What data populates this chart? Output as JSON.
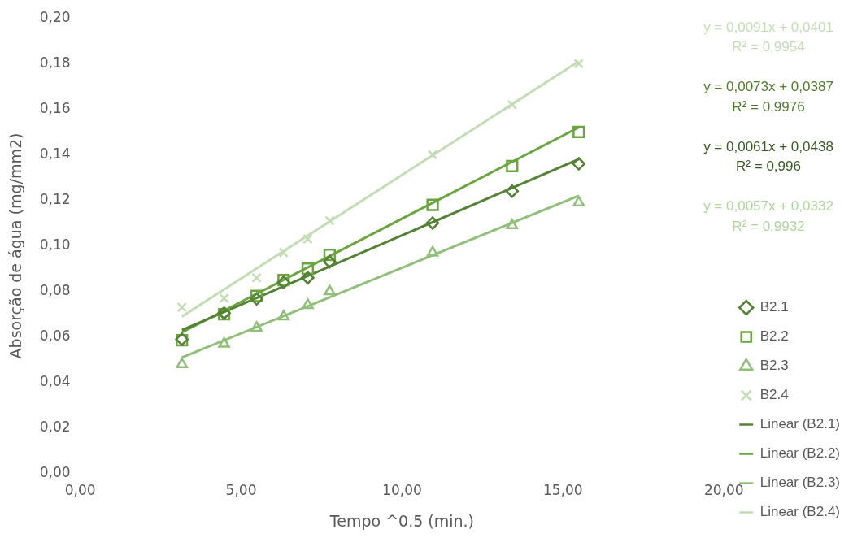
{
  "chart_data": {
    "type": "scatter",
    "xlabel": "Tempo ^0.5 (min.)",
    "ylabel": "Absorção de água (mg/mm2)",
    "xlim": [
      0,
      20
    ],
    "xticks": [
      {
        "value": 0,
        "label": "0,00"
      },
      {
        "value": 5,
        "label": "5,00"
      },
      {
        "value": 10,
        "label": "10,00"
      },
      {
        "value": 15,
        "label": "15,00"
      },
      {
        "value": 20,
        "label": "20,00"
      }
    ],
    "ylim": [
      0,
      0.2
    ],
    "yticks": [
      {
        "value": 0,
        "label": "0,00"
      },
      {
        "value": 0.02,
        "label": "0,02"
      },
      {
        "value": 0.04,
        "label": "0,04"
      },
      {
        "value": 0.06,
        "label": "0,06"
      },
      {
        "value": 0.08,
        "label": "0,08"
      },
      {
        "value": 0.1,
        "label": "0,10"
      },
      {
        "value": 0.12,
        "label": "0,12"
      },
      {
        "value": 0.14,
        "label": "0,14"
      },
      {
        "value": 0.16,
        "label": "0,16"
      },
      {
        "value": 0.18,
        "label": "0,18"
      },
      {
        "value": 0.2,
        "label": "0,20"
      }
    ],
    "grid": false,
    "legend": "right",
    "series": [
      {
        "name": "B2.1",
        "type": "scatter",
        "marker": "diamond",
        "color": "#548235",
        "x": [
          3.16,
          4.47,
          5.48,
          6.32,
          7.07,
          7.75,
          10.95,
          13.42,
          15.49
        ],
        "values": [
          0.059,
          0.0705,
          0.0767,
          0.084,
          0.086,
          0.093,
          0.11,
          0.124,
          0.136
        ]
      },
      {
        "name": "B2.2",
        "type": "scatter",
        "marker": "square",
        "color": "#6aa53f",
        "x": [
          3.16,
          4.47,
          5.48,
          6.32,
          7.07,
          7.75,
          10.95,
          13.42,
          15.49
        ],
        "values": [
          0.0586,
          0.07,
          0.078,
          0.085,
          0.09,
          0.096,
          0.118,
          0.135,
          0.15
        ]
      },
      {
        "name": "B2.3",
        "type": "scatter",
        "marker": "triangle",
        "color": "#8fbf78",
        "x": [
          3.16,
          4.47,
          5.48,
          6.32,
          7.07,
          7.75,
          10.95,
          13.42,
          15.49
        ],
        "values": [
          0.048,
          0.057,
          0.064,
          0.069,
          0.074,
          0.08,
          0.097,
          0.109,
          0.119
        ]
      },
      {
        "name": "B2.4",
        "type": "scatter",
        "marker": "cross",
        "color": "#c2dcb4",
        "x": [
          3.16,
          4.47,
          5.48,
          6.32,
          7.07,
          7.75,
          10.95,
          13.42,
          15.49
        ],
        "values": [
          0.073,
          0.077,
          0.086,
          0.097,
          0.103,
          0.111,
          0.14,
          0.162,
          0.18
        ]
      },
      {
        "name": "Linear (B2.1)",
        "type": "line",
        "marker": "none",
        "color": "#548235",
        "x": [
          3.16,
          15.49
        ],
        "values": [
          0.063,
          0.138
        ]
      },
      {
        "name": "Linear (B2.2)",
        "type": "line",
        "marker": "none",
        "color": "#6aa53f",
        "x": [
          3.16,
          15.49
        ],
        "values": [
          0.062,
          0.152
        ]
      },
      {
        "name": "Linear (B2.3)",
        "type": "line",
        "marker": "none",
        "color": "#8fbf78",
        "x": [
          3.16,
          15.49
        ],
        "values": [
          0.051,
          0.122
        ]
      },
      {
        "name": "Linear (B2.4)",
        "type": "line",
        "marker": "none",
        "color": "#c2dcb4",
        "x": [
          3.16,
          15.49
        ],
        "values": [
          0.069,
          0.181
        ]
      }
    ],
    "annotations": [
      "y = 0,0091x + 0,0401",
      "R² = 0,9954",
      "y = 0,0073x + 0,0387",
      "R² = 0,9976",
      "y = 0,0061x + 0,0438",
      "R² = 0,996",
      "y = 0,0057x + 0,0332",
      "R² = 0,9932"
    ]
  }
}
